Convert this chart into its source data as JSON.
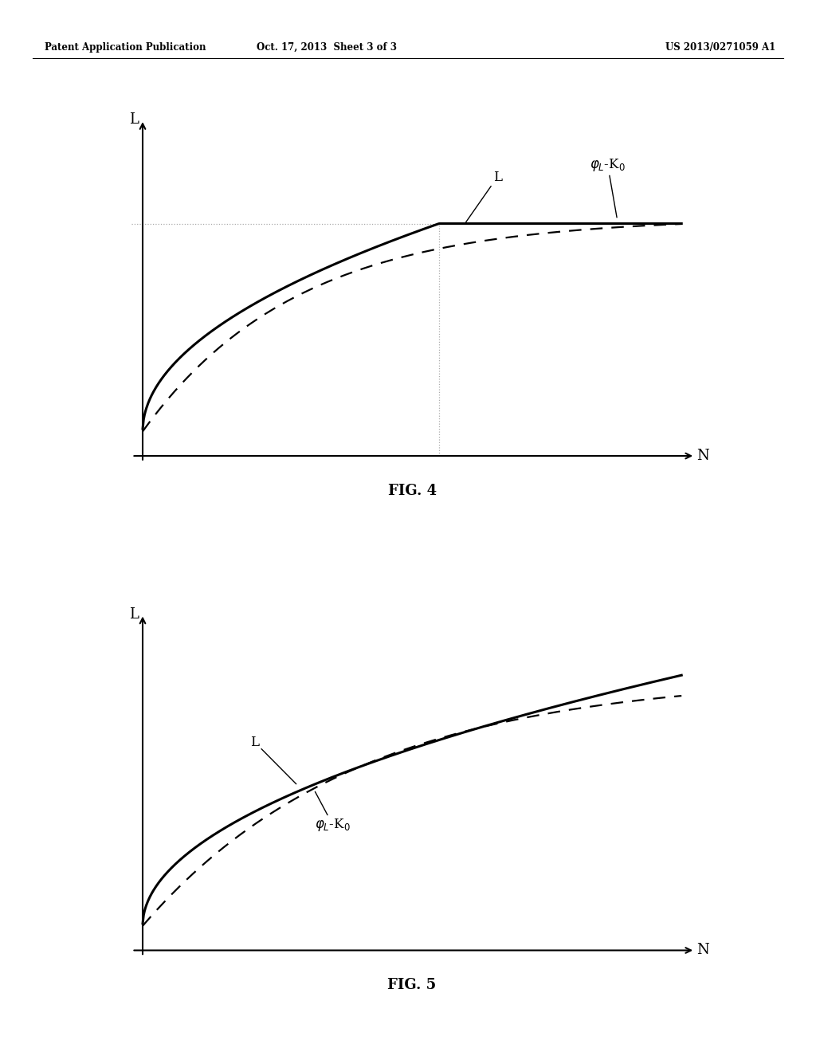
{
  "header_left": "Patent Application Publication",
  "header_center": "Oct. 17, 2013  Sheet 3 of 3",
  "header_right": "US 2013/0271059 A1",
  "fig4_title": "FIG. 4",
  "fig5_title": "FIG. 5",
  "background_color": "#ffffff",
  "page_width": 10.24,
  "page_height": 13.2,
  "fig4_annotation_L_label": "L",
  "fig4_annotation_phi_label": "φ₄-K₀",
  "fig5_annotation_L_label": "L",
  "fig5_annotation_phi_label": "φ₄-K₀"
}
